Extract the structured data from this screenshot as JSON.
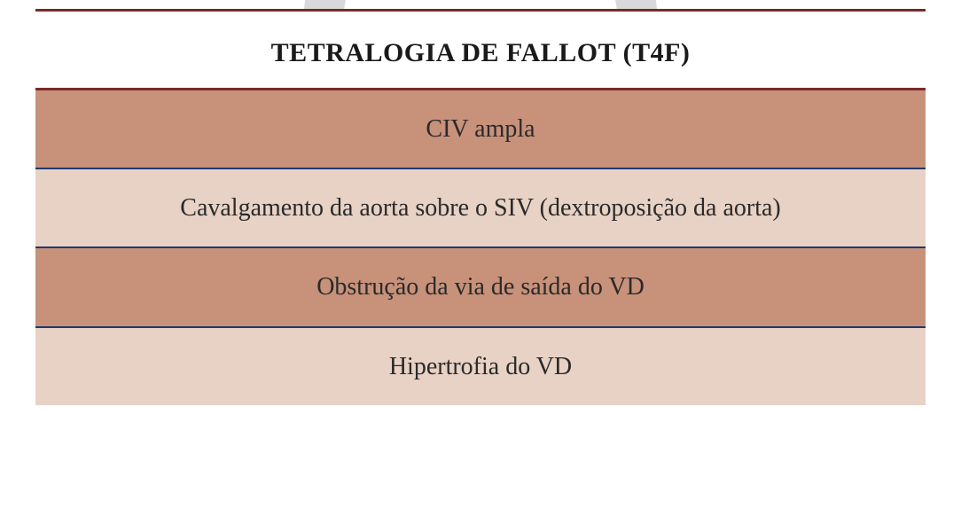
{
  "table": {
    "title": "TETRALOGIA DE FALLOT (T4F)",
    "rows": [
      "CIV ampla",
      "Cavalgamento da aorta sobre o SIV (dextroposição da aorta)",
      "Obstrução da via de saída do VD",
      "Hipertrofia do VD"
    ],
    "styles": {
      "top_rule_color": "#7a2a2a",
      "header_bg": "#ffffff",
      "header_text_color": "#1a1a1a",
      "header_border_color": "#7a2a2a",
      "row_odd_bg": "#c8917a",
      "row_even_bg": "#e8d2c5",
      "row_text_color": "#2a2a2a",
      "row_divider_color": "#1e3a6e",
      "watermark_color": "#d9d9d9",
      "title_fontsize": 30,
      "row_fontsize": 28
    }
  }
}
